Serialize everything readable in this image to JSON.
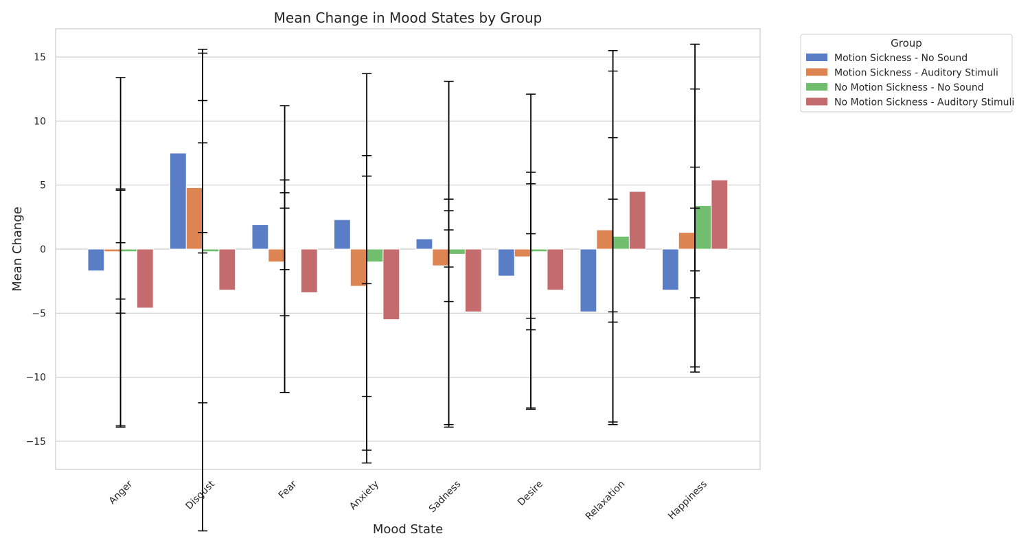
{
  "chart_data": {
    "type": "bar",
    "title": "Mean Change in Mood States by Group",
    "xlabel": "Mood State",
    "ylabel": "Mean Change",
    "ylim": [
      -17.2,
      17.2
    ],
    "yticks": [
      -15,
      -10,
      -5,
      0,
      5,
      10,
      15
    ],
    "grid": true,
    "categories": [
      "Anger",
      "Disgust",
      "Fear",
      "Anxiety",
      "Sadness",
      "Desire",
      "Relaxation",
      "Happiness"
    ],
    "legend": {
      "title": "Group",
      "placement": "outside-top-right"
    },
    "series": [
      {
        "name": "Motion Sickness - No Sound",
        "color": "#5a7ec6",
        "values": [
          -1.7,
          7.5,
          1.9,
          2.3,
          0.8,
          -2.1,
          -4.9,
          -3.2
        ],
        "errors": [
          2.2,
          7.8,
          3.5,
          5.0,
          2.2,
          3.3,
          8.8,
          6.4
        ]
      },
      {
        "name": "Motion Sickness - Auditory Stimuli",
        "color": "#dd8453",
        "values": [
          -0.2,
          4.8,
          -1.0,
          -2.9,
          -1.3,
          -0.6,
          1.5,
          1.3
        ],
        "errors": [
          4.8,
          3.5,
          4.2,
          8.6,
          2.8,
          5.7,
          7.2,
          5.1
        ]
      },
      {
        "name": "No Motion Sickness - No Sound",
        "color": "#71bf6e",
        "values": [
          -0.2,
          -0.2,
          0.0,
          -1.0,
          -0.4,
          -0.2,
          1.0,
          3.4
        ],
        "errors": [
          13.6,
          11.8,
          11.2,
          14.7,
          13.5,
          12.3,
          14.5,
          12.6
        ]
      },
      {
        "name": "No Motion Sickness - Auditory Stimuli",
        "color": "#c46b6d",
        "values": [
          -4.6,
          -3.2,
          -3.4,
          -5.5,
          -4.9,
          -3.2,
          4.5,
          5.4
        ],
        "errors": [
          9.3,
          18.8,
          7.8,
          11.2,
          8.8,
          9.2,
          9.4,
          7.1
        ]
      }
    ]
  }
}
